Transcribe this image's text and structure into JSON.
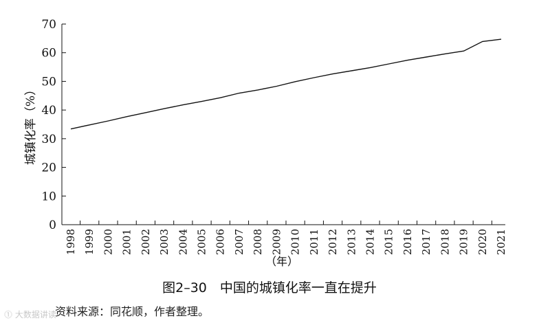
{
  "chart_data": {
    "type": "line",
    "title": "",
    "xlabel": "（年）",
    "ylabel": "城镇化率（%）",
    "ylim": [
      0,
      70
    ],
    "yticks": [
      0,
      10,
      20,
      30,
      40,
      50,
      60,
      70
    ],
    "grid": false,
    "x": [
      "1998",
      "1999",
      "2000",
      "2001",
      "2002",
      "2003",
      "2004",
      "2005",
      "2006",
      "2007",
      "2008",
      "2009",
      "2010",
      "2011",
      "2012",
      "2013",
      "2014",
      "2015",
      "2016",
      "2017",
      "2018",
      "2019",
      "2020",
      "2021"
    ],
    "series": [
      {
        "values": [
          33.4,
          34.8,
          36.2,
          37.7,
          39.1,
          40.5,
          41.8,
          43.0,
          44.3,
          45.9,
          47.0,
          48.3,
          49.9,
          51.3,
          52.6,
          53.7,
          54.8,
          56.1,
          57.4,
          58.5,
          59.6,
          60.6,
          63.9,
          64.7
        ],
        "color": "#111111"
      }
    ]
  },
  "caption": "图2–30　中国的城镇化率一直在提升",
  "source": "资料来源：同花顺，作者整理。",
  "watermark": "⓵ 大数据讲读"
}
